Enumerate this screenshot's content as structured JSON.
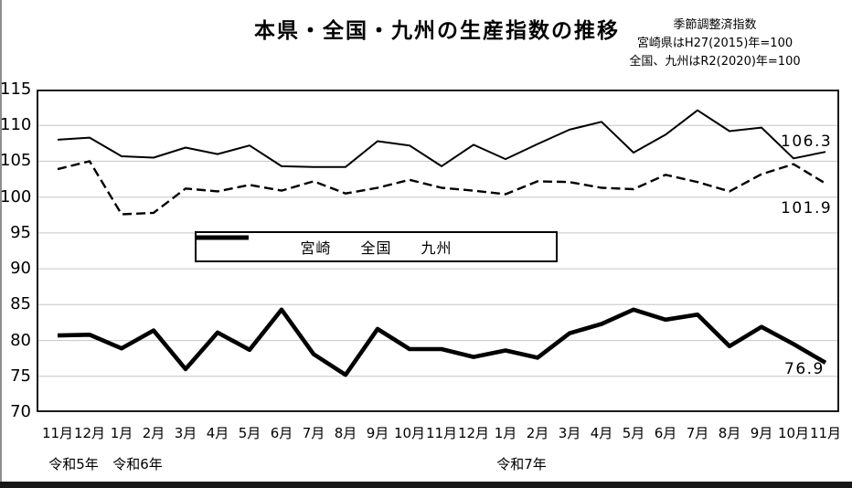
{
  "header": {
    "title": "本県・全国・九州の生産指数の推移",
    "notes": [
      "季節調整済指数",
      "宮崎県はH27(2015)年=100",
      "全国、九州はR2(2020)年=100"
    ]
  },
  "legend": {
    "items": [
      {
        "label": "宮崎",
        "style": "solid-thick"
      },
      {
        "label": "全国",
        "style": "dashed"
      },
      {
        "label": "九州",
        "style": "solid-thin"
      }
    ]
  },
  "axis": {
    "year_labels": [
      {
        "label": "令和5年",
        "between": [
          0,
          1
        ]
      },
      {
        "label": "令和6年",
        "between": [
          2,
          3
        ]
      },
      {
        "label": "令和7年",
        "between": [
          14,
          15
        ]
      }
    ]
  },
  "end_labels": {
    "kyushu": "106.3",
    "zenkoku": "101.9",
    "miyazaki": "76.9"
  },
  "chart_data": {
    "type": "line",
    "title": "本県・全国・九州の生産指数の推移",
    "categories": [
      "11月",
      "12月",
      "1月",
      "2月",
      "3月",
      "4月",
      "5月",
      "6月",
      "7月",
      "8月",
      "9月",
      "10月",
      "11月",
      "12月",
      "1月",
      "2月",
      "3月",
      "4月",
      "5月",
      "6月",
      "7月",
      "8月",
      "9月",
      "10月",
      "11月"
    ],
    "ylim": [
      70,
      115
    ],
    "ytick_step": 5,
    "grid": true,
    "grid_color": "#c6c6c6",
    "line_color": "#000000",
    "legend_position": "inside-left-middle",
    "series": [
      {
        "name": "宮崎",
        "style": "solid-thick",
        "values": [
          80.7,
          80.8,
          78.9,
          81.4,
          76.0,
          81.1,
          78.7,
          84.3,
          78.1,
          75.2,
          81.6,
          78.8,
          78.8,
          77.7,
          78.6,
          77.6,
          81.0,
          82.3,
          84.3,
          82.9,
          83.6,
          79.2,
          81.9,
          79.5,
          76.9
        ]
      },
      {
        "name": "全国",
        "style": "dashed",
        "values": [
          103.9,
          105.0,
          97.6,
          97.8,
          101.2,
          100.8,
          101.7,
          100.9,
          102.2,
          100.5,
          101.3,
          102.4,
          101.3,
          100.9,
          100.4,
          102.2,
          102.1,
          101.3,
          101.1,
          103.1,
          102.1,
          100.8,
          103.2,
          104.6,
          101.9
        ]
      },
      {
        "name": "九州",
        "style": "solid-thin",
        "values": [
          108.0,
          108.3,
          105.7,
          105.5,
          106.9,
          106.0,
          107.2,
          104.3,
          104.2,
          104.2,
          107.8,
          107.2,
          104.3,
          107.3,
          105.3,
          107.4,
          109.4,
          110.5,
          106.2,
          108.7,
          112.1,
          109.2,
          109.7,
          105.4,
          106.3
        ]
      }
    ]
  }
}
